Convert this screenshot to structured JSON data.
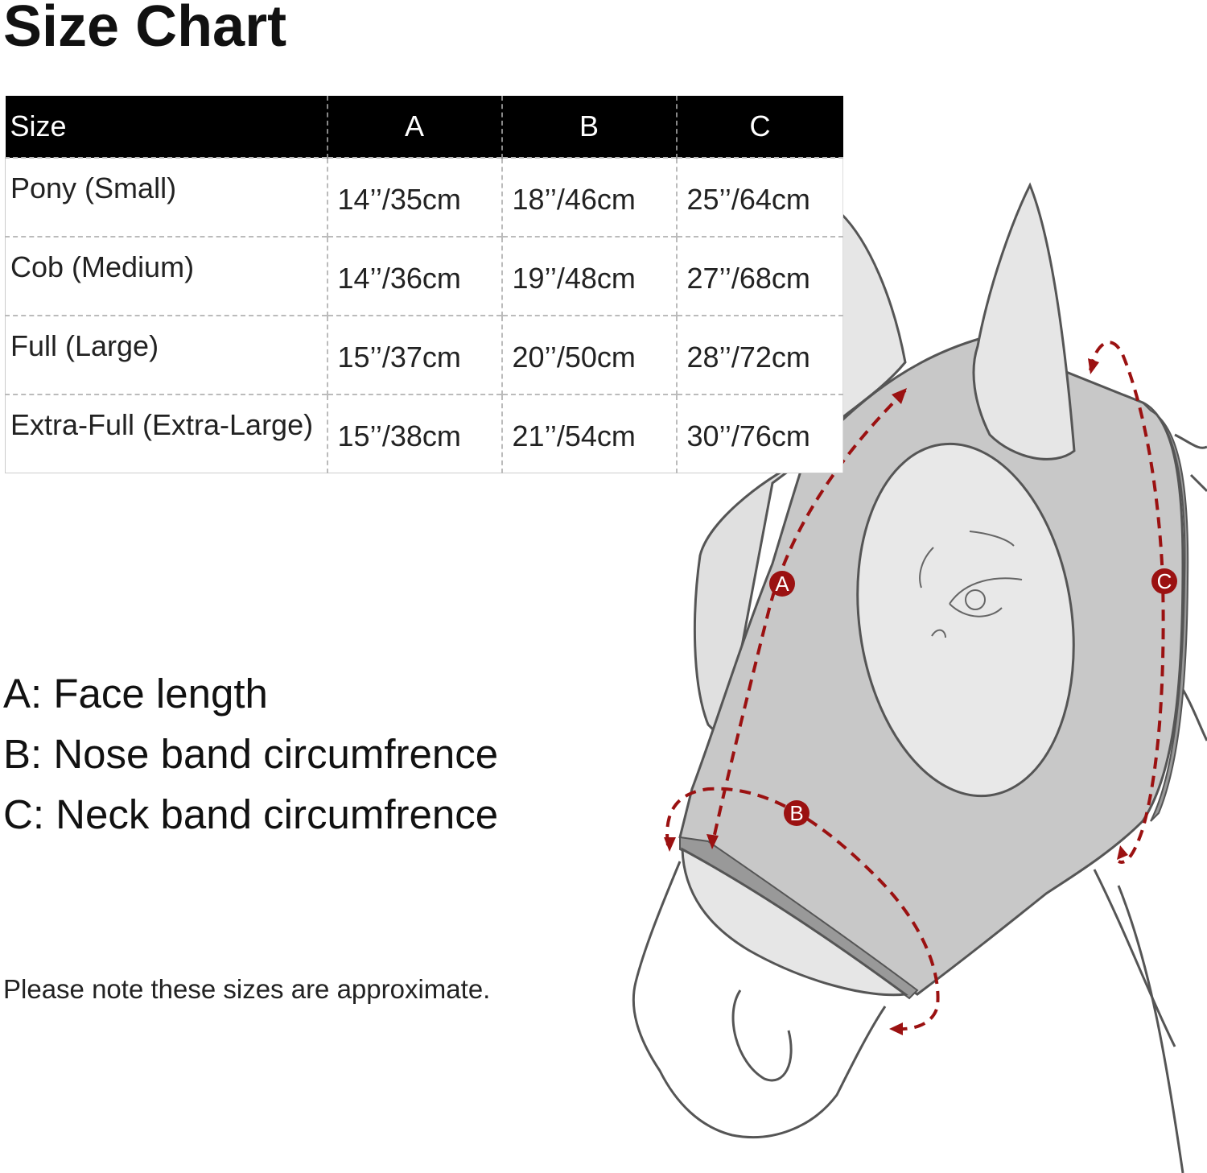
{
  "title": "Size Chart",
  "table": {
    "headers": [
      "Size",
      "A",
      "B",
      "C"
    ],
    "rows": [
      [
        "Pony (Small)",
        "14’’/35cm",
        "18’’/46cm",
        "25’’/64cm"
      ],
      [
        "Cob (Medium)",
        "14’’/36cm",
        "19’’/48cm",
        "27’’/68cm"
      ],
      [
        "Full (Large)",
        "15’’/37cm",
        "20’’/50cm",
        "28’’/72cm"
      ],
      [
        "Extra-Full (Extra-Large)",
        "15’’/38cm",
        "21’’/54cm",
        "30’’/76cm"
      ]
    ]
  },
  "legend": [
    "A: Face length",
    "B: Nose band circumfrence",
    "C: Neck band circumfrence"
  ],
  "note": "Please note these sizes are approximate.",
  "diagram": {
    "markers": [
      "A",
      "B",
      "C"
    ],
    "colors": {
      "marker": "#9b1111",
      "mask": "#c8c8c8",
      "ear": "#e6e6e6",
      "outline": "#555555"
    }
  }
}
